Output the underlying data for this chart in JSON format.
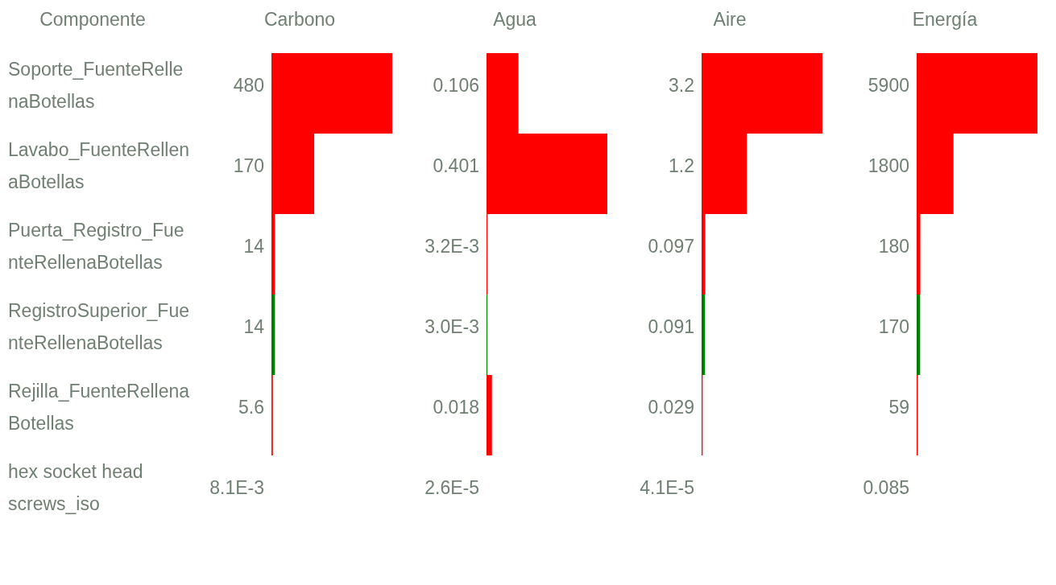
{
  "chart_data": [
    {
      "type": "bar",
      "orientation": "horizontal",
      "title": "Carbono",
      "ylabel": "Componente",
      "tick_labels": "y",
      "categories": [
        "Soporte_FuenteRellenaBotellas",
        "Lavabo_FuenteRellenaBotellas",
        "Puerta_Registro_FuenteRellenaBotellas",
        "RegistroSuperior_FuenteRellenaBotellas",
        "Rejilla_FuenteRellenaBotellas",
        "hex socket head screws_iso"
      ],
      "values": [
        480,
        170,
        14,
        14,
        5.6,
        0.0081
      ],
      "value_labels": [
        "480",
        "170",
        "14",
        "14",
        "5.6",
        "8.1E-3"
      ],
      "colors": [
        "#ff0000",
        "#ff0000",
        "#ff0000",
        "#008000",
        "#ff0000",
        "#ff0000"
      ],
      "xlim": [
        0,
        480
      ]
    },
    {
      "type": "bar",
      "orientation": "horizontal",
      "title": "Agua",
      "tick_labels": false,
      "categories": [
        "Soporte_FuenteRellenaBotellas",
        "Lavabo_FuenteRellenaBotellas",
        "Puerta_Registro_FuenteRellenaBotellas",
        "RegistroSuperior_FuenteRellenaBotellas",
        "Rejilla_FuenteRellenaBotellas",
        "hex socket head screws_iso"
      ],
      "values": [
        0.106,
        0.401,
        0.0032,
        0.003,
        0.018,
        2.6e-05
      ],
      "value_labels": [
        "0.106",
        "0.401",
        "3.2E-3",
        "3.0E-3",
        "0.018",
        "2.6E-5"
      ],
      "colors": [
        "#ff0000",
        "#ff0000",
        "#ff0000",
        "#008000",
        "#ff0000",
        "#ff0000"
      ],
      "xlim": [
        0,
        0.401
      ]
    },
    {
      "type": "bar",
      "orientation": "horizontal",
      "title": "Aire",
      "tick_labels": false,
      "categories": [
        "Soporte_FuenteRellenaBotellas",
        "Lavabo_FuenteRellenaBotellas",
        "Puerta_Registro_FuenteRellenaBotellas",
        "RegistroSuperior_FuenteRellenaBotellas",
        "Rejilla_FuenteRellenaBotellas",
        "hex socket head screws_iso"
      ],
      "values": [
        3.2,
        1.2,
        0.097,
        0.091,
        0.029,
        4.1e-05
      ],
      "value_labels": [
        "3.2",
        "1.2",
        "0.097",
        "0.091",
        "0.029",
        "4.1E-5"
      ],
      "colors": [
        "#ff0000",
        "#ff0000",
        "#ff0000",
        "#008000",
        "#ff0000",
        "#ff0000"
      ],
      "xlim": [
        0,
        3.2
      ]
    },
    {
      "type": "bar",
      "orientation": "horizontal",
      "title": "Energía",
      "tick_labels": false,
      "categories": [
        "Soporte_FuenteRellenaBotellas",
        "Lavabo_FuenteRellenaBotellas",
        "Puerta_Registro_FuenteRellenaBotellas",
        "RegistroSuperior_FuenteRellenaBotellas",
        "Rejilla_FuenteRellenaBotellas",
        "hex socket head screws_iso"
      ],
      "values": [
        5900,
        1800,
        180,
        170,
        59,
        0.085
      ],
      "value_labels": [
        "5900",
        "1800",
        "180",
        "170",
        "59",
        "0.085"
      ],
      "colors": [
        "#ff0000",
        "#ff0000",
        "#ff0000",
        "#008000",
        "#ff0000",
        "#ff0000"
      ],
      "xlim": [
        0,
        5900
      ]
    }
  ]
}
